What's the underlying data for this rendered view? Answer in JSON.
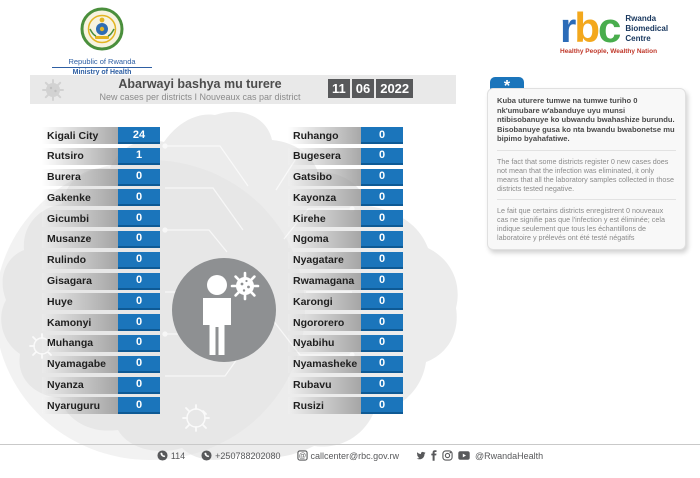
{
  "branding": {
    "gov": {
      "line1": "Republic of Rwanda",
      "line2": "Ministry of Health"
    },
    "rbc": {
      "letters": {
        "r": "r",
        "b": "b",
        "c": "c"
      },
      "name_lines": [
        "Rwanda",
        "Biomedical",
        "Centre"
      ],
      "tagline": "Healthy People, Wealthy Nation"
    }
  },
  "header": {
    "title_rw": "Abarwayi bashya mu turere",
    "subtitle": "New cases per districts  I  Nouveaux cas par district",
    "date": {
      "day": "11",
      "month": "06",
      "year": "2022"
    }
  },
  "districts": {
    "left": [
      {
        "name": "Kigali City",
        "value": "24"
      },
      {
        "name": "Rutsiro",
        "value": "1"
      },
      {
        "name": "Burera",
        "value": "0"
      },
      {
        "name": "Gakenke",
        "value": "0"
      },
      {
        "name": "Gicumbi",
        "value": "0"
      },
      {
        "name": "Musanze",
        "value": "0"
      },
      {
        "name": "Rulindo",
        "value": "0"
      },
      {
        "name": "Gisagara",
        "value": "0"
      },
      {
        "name": "Huye",
        "value": "0"
      },
      {
        "name": "Kamonyi",
        "value": "0"
      },
      {
        "name": "Muhanga",
        "value": "0"
      },
      {
        "name": "Nyamagabe",
        "value": "0"
      },
      {
        "name": "Nyanza",
        "value": "0"
      },
      {
        "name": "Nyaruguru",
        "value": "0"
      }
    ],
    "right": [
      {
        "name": "Ruhango",
        "value": "0"
      },
      {
        "name": "Bugesera",
        "value": "0"
      },
      {
        "name": "Gatsibo",
        "value": "0"
      },
      {
        "name": "Kayonza",
        "value": "0"
      },
      {
        "name": "Kirehe",
        "value": "0"
      },
      {
        "name": "Ngoma",
        "value": "0"
      },
      {
        "name": "Nyagatare",
        "value": "0"
      },
      {
        "name": "Rwamagana",
        "value": "0"
      },
      {
        "name": "Karongi",
        "value": "0"
      },
      {
        "name": "Ngororero",
        "value": "0"
      },
      {
        "name": "Nyabihu",
        "value": "0"
      },
      {
        "name": "Nyamasheke",
        "value": "0"
      },
      {
        "name": "Rubavu",
        "value": "0"
      },
      {
        "name": "Rusizi",
        "value": "0"
      }
    ]
  },
  "notice": {
    "tab": "*",
    "rw": "Kuba uturere tumwe na tumwe turiho 0 nk'umubare w'abanduye uyu munsi ntibisobanuye ko ubwandu bwahashize burundu. Bisobanuye gusa ko nta bwandu bwabonetse mu bipimo byahafatiwe.",
    "en": "The fact that some districts register 0 new cases does not mean that the infection was eliminated, it only means that all the laboratory samples collected in those districts tested negative.",
    "fr": "Le fait que certains districts enregistrent 0 nouveaux cas ne signifie pas que l'infection y est éliminée; cela indique seulement que tous les échantillons de laboratoire y prélevés ont été testé négatifs"
  },
  "footer": {
    "phone_short": "114",
    "phone_full": "+250788202080",
    "email": "callcenter@rbc.gov.rw",
    "social_handle": "@RwandaHealth"
  },
  "colors": {
    "accent_blue": "#1b75bb",
    "accent_blue_dark": "#0e5a95",
    "date_gray": "#58595b"
  }
}
